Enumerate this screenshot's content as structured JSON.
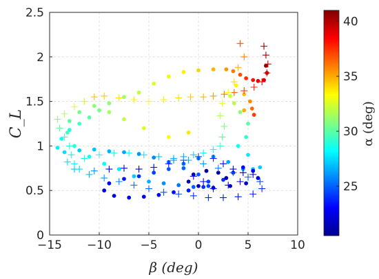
{
  "chart_data": {
    "type": "scatter",
    "xlabel": "β (deg)",
    "ylabel": "C_L",
    "colorbar_label": "α (deg)",
    "xlim": [
      -15,
      10
    ],
    "ylim": [
      0,
      2.5
    ],
    "clim": [
      20.5,
      41
    ],
    "grid": true,
    "x_ticks": [
      "−15",
      "−10",
      "−5",
      "0",
      "5",
      "10"
    ],
    "y_ticks": [
      "0",
      "0.5",
      "1",
      "1.5",
      "2",
      "2.5"
    ],
    "colorbar_ticks": [
      "25",
      "30",
      "35",
      "40"
    ],
    "series": [
      {
        "marker": "dot",
        "points": [
          [
            6.8,
            1.9,
            40.5
          ],
          [
            6.9,
            1.82,
            40.0
          ],
          [
            6.6,
            1.74,
            39.3
          ],
          [
            6.0,
            1.73,
            38.8
          ],
          [
            5.5,
            1.74,
            38.2
          ],
          [
            4.8,
            1.76,
            37.5
          ],
          [
            4.2,
            1.8,
            36.8
          ],
          [
            3.5,
            1.84,
            36.0
          ],
          [
            2.8,
            1.86,
            35.4
          ],
          [
            1.5,
            1.86,
            34.8
          ],
          [
            0.0,
            1.85,
            34.2
          ],
          [
            -1.5,
            1.83,
            33.6
          ],
          [
            -3.0,
            1.78,
            33.0
          ],
          [
            -4.5,
            1.7,
            32.5
          ],
          [
            -6.0,
            1.6,
            32.0
          ],
          [
            -7.5,
            1.55,
            31.5
          ],
          [
            -9.0,
            1.48,
            31.0
          ],
          [
            -10.0,
            1.4,
            30.6
          ],
          [
            -11.0,
            1.32,
            30.0
          ],
          [
            -12.0,
            1.25,
            29.5
          ],
          [
            -13.0,
            1.18,
            29.0
          ],
          [
            -13.8,
            1.08,
            28.5
          ],
          [
            -14.2,
            0.98,
            28.0
          ],
          [
            -13.5,
            0.93,
            27.6
          ],
          [
            -12.0,
            0.95,
            27.2
          ],
          [
            -10.5,
            0.96,
            27.0
          ],
          [
            -9.0,
            0.94,
            26.7
          ],
          [
            -7.5,
            0.93,
            26.4
          ],
          [
            -6.0,
            0.91,
            26.1
          ],
          [
            -4.5,
            0.87,
            25.8
          ],
          [
            -3.0,
            0.82,
            25.5
          ],
          [
            -1.5,
            0.75,
            25.1
          ],
          [
            0.0,
            0.68,
            24.8
          ],
          [
            1.0,
            0.6,
            24.4
          ],
          [
            0.5,
            0.54,
            24.0
          ],
          [
            -1.0,
            0.5,
            23.6
          ],
          [
            -2.5,
            0.48,
            23.3
          ],
          [
            -4.0,
            0.45,
            23.0
          ],
          [
            -5.5,
            0.43,
            22.8
          ],
          [
            -7.0,
            0.42,
            22.6
          ],
          [
            -8.5,
            0.44,
            22.4
          ],
          [
            -9.5,
            0.5,
            22.6
          ],
          [
            -9.0,
            0.58,
            23.0
          ],
          [
            -7.5,
            0.63,
            23.5
          ],
          [
            -6.0,
            0.66,
            24.0
          ],
          [
            -4.5,
            0.7,
            24.4
          ],
          [
            -3.0,
            0.74,
            24.8
          ],
          [
            -1.5,
            0.8,
            25.2
          ],
          [
            0.0,
            0.86,
            25.6
          ],
          [
            1.5,
            0.88,
            26.0
          ],
          [
            3.0,
            0.82,
            26.4
          ],
          [
            4.5,
            0.74,
            26.8
          ],
          [
            5.5,
            0.74,
            27.0
          ],
          [
            6.2,
            0.76,
            27.2
          ],
          [
            5.0,
            0.9,
            27.8
          ],
          [
            4.0,
            1.0,
            28.4
          ],
          [
            4.8,
            1.1,
            29.2
          ],
          [
            5.0,
            1.25,
            30.0
          ],
          [
            4.2,
            1.38,
            31.0
          ],
          [
            3.6,
            1.48,
            31.8
          ],
          [
            3.2,
            1.56,
            32.4
          ],
          [
            3.8,
            1.68,
            33.5
          ],
          [
            4.6,
            1.58,
            34.5
          ],
          [
            5.2,
            1.5,
            35.6
          ],
          [
            5.4,
            1.42,
            36.3
          ],
          [
            5.6,
            1.35,
            37.2
          ],
          [
            4.6,
            1.4,
            35.0
          ],
          [
            -1.0,
            1.15,
            33.8
          ],
          [
            -3.0,
            1.1,
            33.2
          ],
          [
            -5.5,
            1.2,
            32.6
          ],
          [
            -7.5,
            1.3,
            32.0
          ],
          [
            -9.0,
            1.38,
            31.5
          ],
          [
            -10.5,
            1.45,
            31.0
          ],
          [
            -12.0,
            1.38,
            30.5
          ],
          [
            -13.0,
            1.28,
            30.0
          ],
          [
            -13.2,
            1.15,
            29.6
          ],
          [
            -12.5,
            1.0,
            29.0
          ],
          [
            -11.0,
            0.88,
            28.6
          ],
          [
            -9.5,
            0.8,
            28.2
          ],
          [
            -8.0,
            0.74,
            27.8
          ],
          [
            -6.5,
            0.66,
            27.2
          ],
          [
            -5.0,
            0.6,
            26.6
          ],
          [
            -3.5,
            0.58,
            26.0
          ],
          [
            -2.0,
            0.56,
            25.5
          ],
          [
            -0.5,
            0.54,
            25.0
          ],
          [
            1.0,
            0.55,
            24.4
          ],
          [
            2.5,
            0.62,
            24.0
          ],
          [
            3.5,
            0.7,
            23.6
          ],
          [
            4.5,
            0.76,
            23.2
          ],
          [
            5.5,
            0.72,
            22.8
          ],
          [
            6.0,
            0.64,
            22.4
          ],
          [
            4.8,
            0.58,
            22.0
          ],
          [
            3.2,
            0.55,
            21.8
          ],
          [
            1.5,
            0.53,
            21.6
          ],
          [
            0.0,
            0.55,
            21.4
          ],
          [
            -1.0,
            0.6,
            21.3
          ],
          [
            -0.5,
            0.68,
            21.2
          ],
          [
            0.8,
            0.72,
            21.2
          ],
          [
            2.0,
            0.7,
            21.3
          ],
          [
            2.8,
            0.64,
            21.4
          ]
        ]
      },
      {
        "marker": "plus",
        "points": [
          [
            6.6,
            2.12,
            40.8
          ],
          [
            6.8,
            2.02,
            40.2
          ],
          [
            7.0,
            1.92,
            39.6
          ],
          [
            6.9,
            1.82,
            39.0
          ],
          [
            6.4,
            1.72,
            38.4
          ],
          [
            5.6,
            1.66,
            37.8
          ],
          [
            4.6,
            1.62,
            37.2
          ],
          [
            3.6,
            1.6,
            36.6
          ],
          [
            2.6,
            1.58,
            36.0
          ],
          [
            1.5,
            1.56,
            35.4
          ],
          [
            0.5,
            1.55,
            34.8
          ],
          [
            -0.8,
            1.55,
            34.4
          ],
          [
            -2.0,
            1.54,
            34.0
          ],
          [
            -3.5,
            1.52,
            33.6
          ],
          [
            -5.0,
            1.5,
            33.4
          ],
          [
            -6.5,
            1.52,
            33.6
          ],
          [
            -8.0,
            1.54,
            34.0
          ],
          [
            -9.5,
            1.56,
            34.4
          ],
          [
            -10.5,
            1.55,
            34.6
          ],
          [
            -11.5,
            1.5,
            33.8
          ],
          [
            -12.5,
            1.44,
            32.8
          ],
          [
            -13.5,
            1.36,
            31.8
          ],
          [
            -14.2,
            1.3,
            31.0
          ],
          [
            -14.0,
            1.2,
            30.2
          ],
          [
            -13.5,
            1.1,
            29.4
          ],
          [
            -13.0,
            1.0,
            28.8
          ],
          [
            -12.8,
            0.9,
            28.2
          ],
          [
            -13.2,
            0.82,
            27.6
          ],
          [
            -12.5,
            0.74,
            27.0
          ],
          [
            -11.0,
            0.68,
            26.6
          ],
          [
            -9.5,
            0.64,
            26.2
          ],
          [
            -8.0,
            0.6,
            25.8
          ],
          [
            -6.5,
            0.56,
            25.4
          ],
          [
            -5.0,
            0.52,
            25.0
          ],
          [
            -3.5,
            0.48,
            24.6
          ],
          [
            -2.0,
            0.46,
            24.3
          ],
          [
            -0.5,
            0.44,
            24.0
          ],
          [
            1.0,
            0.42,
            23.8
          ],
          [
            2.5,
            0.42,
            23.6
          ],
          [
            4.0,
            0.43,
            23.5
          ],
          [
            5.5,
            0.46,
            23.7
          ],
          [
            6.4,
            0.52,
            24.0
          ],
          [
            6.2,
            0.6,
            24.4
          ],
          [
            5.0,
            0.65,
            24.8
          ],
          [
            3.5,
            0.7,
            25.2
          ],
          [
            2.0,
            0.75,
            25.6
          ],
          [
            0.5,
            0.8,
            26.0
          ],
          [
            -1.0,
            0.84,
            26.4
          ],
          [
            -2.5,
            0.86,
            26.8
          ],
          [
            -4.0,
            0.88,
            27.2
          ],
          [
            -5.5,
            0.9,
            27.8
          ],
          [
            -7.0,
            0.92,
            28.2
          ],
          [
            -8.5,
            0.92,
            28.6
          ],
          [
            -10.0,
            0.9,
            28.8
          ],
          [
            -11.5,
            0.86,
            28.5
          ],
          [
            -12.5,
            0.8,
            28.0
          ],
          [
            -12.0,
            0.74,
            27.4
          ],
          [
            -10.5,
            0.72,
            26.0
          ],
          [
            -9.0,
            0.74,
            23.0
          ],
          [
            -7.5,
            0.75,
            22.2
          ],
          [
            -6.0,
            0.74,
            22.0
          ],
          [
            -4.5,
            0.76,
            22.5
          ],
          [
            -3.0,
            0.8,
            23.4
          ],
          [
            -1.5,
            0.84,
            24.0
          ],
          [
            0.0,
            0.88,
            24.2
          ],
          [
            1.5,
            0.86,
            23.8
          ],
          [
            2.5,
            0.8,
            23.2
          ],
          [
            3.5,
            0.74,
            22.6
          ],
          [
            4.5,
            0.7,
            22.2
          ],
          [
            5.5,
            0.68,
            22.0
          ],
          [
            4.2,
            0.6,
            22.4
          ],
          [
            3.0,
            0.56,
            23.0
          ],
          [
            1.5,
            0.52,
            23.4
          ],
          [
            0.5,
            0.6,
            23.0
          ],
          [
            -0.5,
            0.66,
            22.6
          ],
          [
            4.2,
            2.15,
            36.8
          ],
          [
            4.6,
            2.0,
            35.8
          ],
          [
            4.0,
            1.88,
            34.8
          ],
          [
            3.6,
            1.72,
            34.0
          ],
          [
            3.0,
            1.6,
            33.4
          ],
          [
            2.4,
            1.48,
            32.8
          ],
          [
            2.2,
            1.34,
            31.8
          ],
          [
            2.6,
            1.22,
            30.8
          ],
          [
            2.4,
            1.1,
            30.2
          ],
          [
            2.2,
            1.0,
            29.6
          ],
          [
            1.5,
            0.96,
            28.8
          ],
          [
            0.5,
            0.92,
            28.0
          ],
          [
            -0.5,
            0.9,
            27.4
          ],
          [
            -1.5,
            0.88,
            26.8
          ],
          [
            -2.5,
            0.84,
            26.0
          ]
        ]
      }
    ]
  }
}
